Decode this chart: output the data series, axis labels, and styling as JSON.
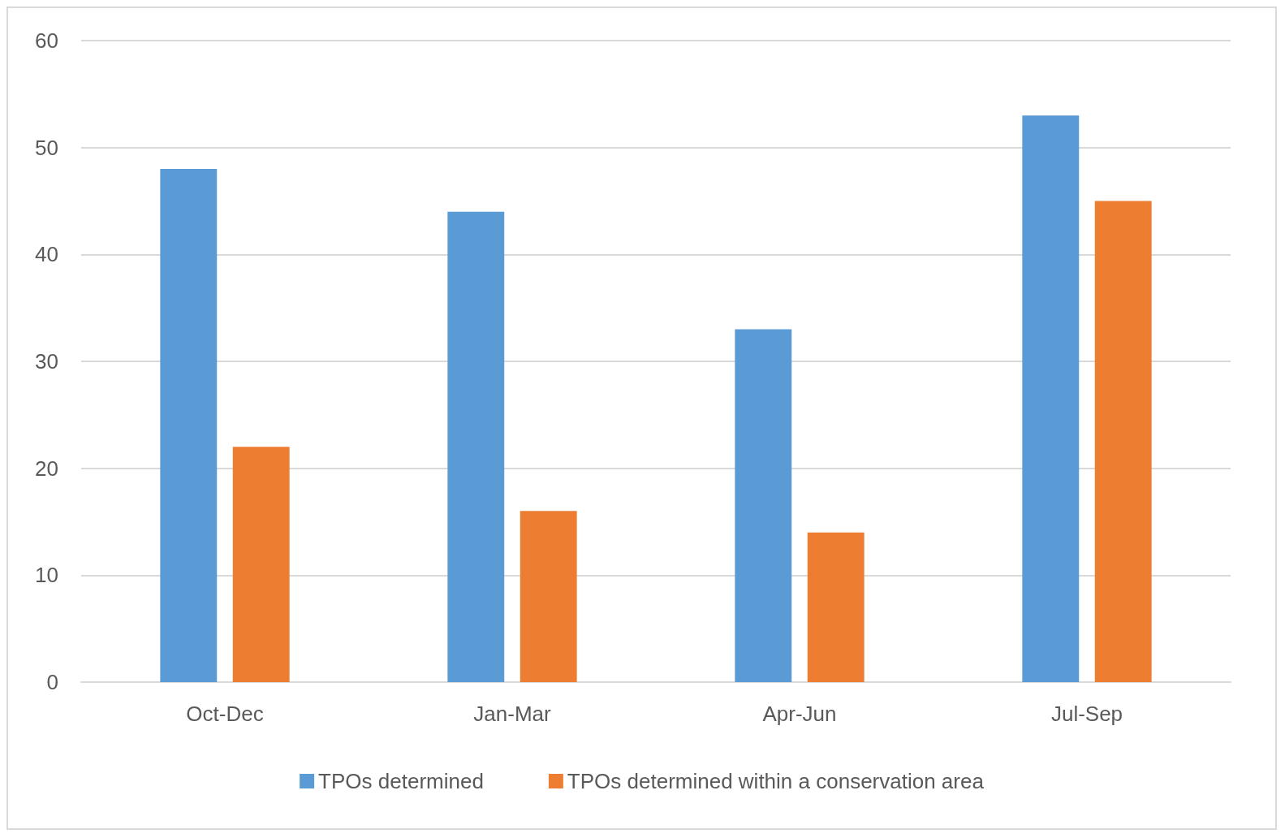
{
  "chart_data": {
    "type": "bar",
    "categories": [
      "Oct-Dec",
      "Jan-Mar",
      "Apr-Jun",
      "Jul-Sep"
    ],
    "series": [
      {
        "name": "TPOs determined",
        "color": "#5b9bd5",
        "values": [
          48,
          44,
          33,
          53
        ]
      },
      {
        "name": "TPOs determined within a conservation area",
        "color": "#ed7d31",
        "values": [
          22,
          16,
          14,
          45
        ]
      }
    ],
    "ylim": [
      0,
      60
    ],
    "yticks": [
      0,
      10,
      20,
      30,
      40,
      50,
      60
    ],
    "grid": "y",
    "legend": "bottom"
  }
}
